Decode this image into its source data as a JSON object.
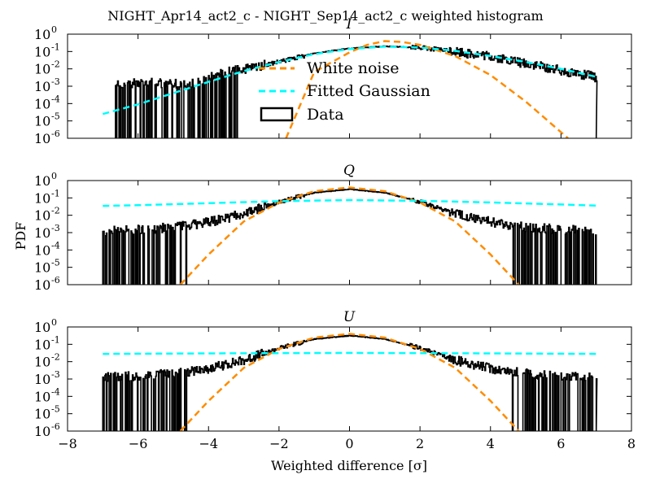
{
  "figure": {
    "suptitle": "NIGHT_Apr14_act2_c - NIGHT_Sep14_act2_c weighted histogram",
    "xlabel": "Weighted difference [σ]",
    "ylabel": "PDF"
  },
  "legend": {
    "white_noise": "White noise",
    "fitted_gaussian": "Fitted Gaussian",
    "data": "Data"
  },
  "colors": {
    "white_noise": "#FF8C00",
    "fitted_gaussian": "#00FFFF",
    "data": "#000000",
    "axes": "#000000"
  },
  "chart_data": [
    {
      "type": "line",
      "title": "I",
      "xlim": [
        -8,
        8
      ],
      "ylim_log10": [
        -6,
        0
      ],
      "y_scale": "log",
      "xticks": [
        -8,
        -6,
        -4,
        -2,
        0,
        2,
        4,
        6,
        8
      ],
      "yticks_log10": [
        0,
        -1,
        -2,
        -3,
        -4,
        -5,
        -6
      ],
      "show_xtick_labels": false,
      "legend_position": "center",
      "series": [
        {
          "name": "White noise",
          "style": "dashed",
          "points": [
            [
              -1.8,
              1e-06
            ],
            [
              -1,
              0.0067
            ],
            [
              0,
              0.089
            ],
            [
              0.5,
              0.24
            ],
            [
              1,
              0.4
            ],
            [
              1.5,
              0.35
            ],
            [
              2,
              0.242
            ],
            [
              3,
              0.054
            ],
            [
              4,
              0.0044
            ],
            [
              5,
              0.00013
            ],
            [
              6.2,
              1e-06
            ]
          ]
        },
        {
          "name": "Fitted Gaussian",
          "style": "dashed",
          "points": [
            [
              -7,
              2.5e-05
            ],
            [
              -6,
              9e-05
            ],
            [
              -5,
              0.0004
            ],
            [
              -4,
              0.0018
            ],
            [
              -3,
              0.0075
            ],
            [
              -2,
              0.025
            ],
            [
              -1,
              0.07
            ],
            [
              0,
              0.14
            ],
            [
              1,
              0.19
            ],
            [
              2,
              0.17
            ],
            [
              3,
              0.11
            ],
            [
              4,
              0.055
            ],
            [
              5,
              0.025
            ],
            [
              6,
              0.01
            ],
            [
              7,
              0.0035
            ]
          ]
        },
        {
          "name": "Data",
          "style": "step",
          "points": [
            [
              -6.7,
              0.0015
            ],
            [
              -5.5,
              0.0015
            ],
            [
              -4.4,
              0.0015
            ],
            [
              -3.5,
              0.007
            ],
            [
              -3,
              0.009
            ],
            [
              -2,
              0.025
            ],
            [
              -1,
              0.08
            ],
            [
              0,
              0.15
            ],
            [
              1,
              0.2
            ],
            [
              2,
              0.17
            ],
            [
              3,
              0.1
            ],
            [
              4,
              0.05
            ],
            [
              5,
              0.02
            ],
            [
              6,
              0.008
            ],
            [
              6.8,
              0.004
            ],
            [
              7,
              0.003
            ]
          ]
        }
      ]
    },
    {
      "type": "line",
      "title": "Q",
      "xlim": [
        -8,
        8
      ],
      "ylim_log10": [
        -6,
        0
      ],
      "y_scale": "log",
      "xticks": [
        -8,
        -6,
        -4,
        -2,
        0,
        2,
        4,
        6,
        8
      ],
      "yticks_log10": [
        0,
        -1,
        -2,
        -3,
        -4,
        -5,
        -6
      ],
      "show_xtick_labels": false,
      "series": [
        {
          "name": "White noise",
          "style": "dashed",
          "points": [
            [
              -4.8,
              1e-06
            ],
            [
              -4,
              5.5e-05
            ],
            [
              -3,
              0.0044
            ],
            [
              -2,
              0.054
            ],
            [
              -1,
              0.242
            ],
            [
              0,
              0.4
            ],
            [
              1,
              0.242
            ],
            [
              2,
              0.054
            ],
            [
              3,
              0.0044
            ],
            [
              4,
              5.5e-05
            ],
            [
              4.8,
              1e-06
            ]
          ]
        },
        {
          "name": "Fitted Gaussian",
          "style": "dashed",
          "points": [
            [
              -7,
              0.035
            ],
            [
              -6,
              0.038
            ],
            [
              -4,
              0.05
            ],
            [
              -2,
              0.065
            ],
            [
              0,
              0.075
            ],
            [
              2,
              0.068
            ],
            [
              4,
              0.055
            ],
            [
              6,
              0.042
            ],
            [
              7,
              0.036
            ]
          ]
        },
        {
          "name": "Data",
          "style": "step",
          "points": [
            [
              -7,
              0.0012
            ],
            [
              -6,
              0.0015
            ],
            [
              -5,
              0.002
            ],
            [
              -4,
              0.004
            ],
            [
              -3,
              0.012
            ],
            [
              -2,
              0.06
            ],
            [
              -1,
              0.2
            ],
            [
              0,
              0.32
            ],
            [
              1,
              0.2
            ],
            [
              2,
              0.06
            ],
            [
              3,
              0.012
            ],
            [
              4,
              0.004
            ],
            [
              5,
              0.002
            ],
            [
              6,
              0.0015
            ],
            [
              7,
              0.0012
            ]
          ]
        }
      ]
    },
    {
      "type": "line",
      "title": "U",
      "xlim": [
        -8,
        8
      ],
      "ylim_log10": [
        -6,
        0
      ],
      "y_scale": "log",
      "xticks": [
        -8,
        -6,
        -4,
        -2,
        0,
        2,
        4,
        6,
        8
      ],
      "yticks_log10": [
        0,
        -1,
        -2,
        -3,
        -4,
        -5,
        -6
      ],
      "show_xtick_labels": true,
      "series": [
        {
          "name": "White noise",
          "style": "dashed",
          "points": [
            [
              -4.8,
              1e-06
            ],
            [
              -4,
              5.5e-05
            ],
            [
              -3,
              0.0044
            ],
            [
              -2,
              0.054
            ],
            [
              -1,
              0.242
            ],
            [
              0,
              0.4
            ],
            [
              1,
              0.242
            ],
            [
              2,
              0.054
            ],
            [
              3,
              0.0044
            ],
            [
              4,
              5.5e-05
            ],
            [
              4.8,
              1e-06
            ]
          ]
        },
        {
          "name": "Fitted Gaussian",
          "style": "dashed",
          "points": [
            [
              -7,
              0.028
            ],
            [
              -4,
              0.03
            ],
            [
              0,
              0.032
            ],
            [
              4,
              0.03
            ],
            [
              7,
              0.028
            ]
          ]
        },
        {
          "name": "Data",
          "style": "step",
          "points": [
            [
              -7,
              0.0012
            ],
            [
              -6,
              0.0015
            ],
            [
              -5,
              0.002
            ],
            [
              -4,
              0.004
            ],
            [
              -3,
              0.012
            ],
            [
              -2,
              0.06
            ],
            [
              -1,
              0.2
            ],
            [
              0,
              0.32
            ],
            [
              1,
              0.2
            ],
            [
              2,
              0.06
            ],
            [
              3,
              0.012
            ],
            [
              4,
              0.004
            ],
            [
              5,
              0.002
            ],
            [
              6,
              0.0015
            ],
            [
              7,
              0.0012
            ]
          ]
        }
      ]
    }
  ]
}
